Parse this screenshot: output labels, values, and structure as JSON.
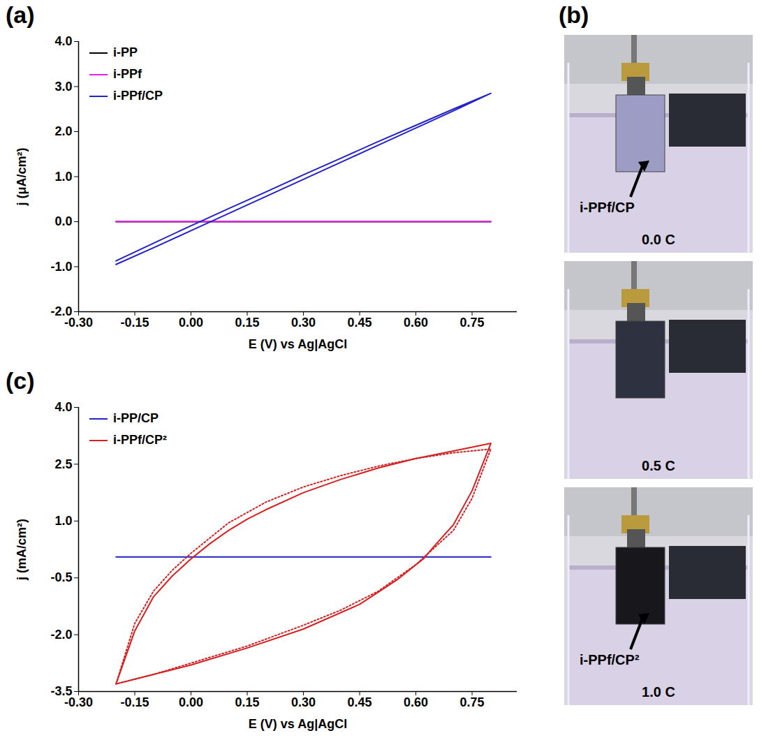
{
  "panel_labels": [
    "(a)",
    "(b)",
    "(c)"
  ],
  "chart_data": [
    {
      "type": "line",
      "x_label": "E (V) vs Ag|AgCl",
      "y_label": "j (μA/cm²)",
      "xlim": [
        -0.3,
        0.87
      ],
      "ylim": [
        -2.0,
        4.0
      ],
      "xticks": [
        {
          "value": -0.3,
          "label": "-0.30"
        },
        {
          "value": -0.15,
          "label": "-0.15"
        },
        {
          "value": 0,
          "label": "0.00"
        },
        {
          "value": 0.15,
          "label": "0.15"
        },
        {
          "value": 0.3,
          "label": "0.30"
        },
        {
          "value": 0.45,
          "label": "0.45"
        },
        {
          "value": 0.6,
          "label": "0.60"
        },
        {
          "value": 0.75,
          "label": "0.75"
        }
      ],
      "yticks": [
        {
          "value": -2,
          "label": "-2.0"
        },
        {
          "value": -1,
          "label": "-1.0"
        },
        {
          "value": 0,
          "label": "0.0"
        },
        {
          "value": 1,
          "label": "1.0"
        },
        {
          "value": 2,
          "label": "2.0"
        },
        {
          "value": 3,
          "label": "3.0"
        },
        {
          "value": 4,
          "label": "4.0"
        }
      ],
      "grid": false,
      "legend": "top-left",
      "series": [
        {
          "name": "i-PP",
          "color": "#000000",
          "line_style": "solid",
          "x": [
            -0.2,
            0.8
          ],
          "values": [
            0,
            0
          ]
        },
        {
          "name": "i-PPf",
          "color": "#e61ee6",
          "line_style": "solid",
          "x": [
            -0.2,
            0.8
          ],
          "values": [
            0,
            0
          ]
        },
        {
          "name": "i-PPf/CP",
          "color": "#2222c8",
          "line_style": "solid",
          "x": [
            -0.2,
            -0.1,
            0.0,
            0.1,
            0.2,
            0.3,
            0.4,
            0.5,
            0.6,
            0.7,
            0.8,
            0.7,
            0.6,
            0.5,
            0.4,
            0.3,
            0.2,
            0.1,
            0.0,
            -0.1,
            -0.2
          ],
          "values": [
            -0.95,
            -0.58,
            -0.2,
            0.18,
            0.56,
            0.94,
            1.32,
            1.7,
            2.08,
            2.46,
            2.85,
            2.5,
            2.14,
            1.78,
            1.41,
            1.04,
            0.66,
            0.29,
            -0.09,
            -0.48,
            -0.87
          ]
        }
      ]
    },
    {
      "type": "line",
      "x_label": "E (V) vs Ag|AgCl",
      "y_label": "j (mA/cm²)",
      "xlim": [
        -0.3,
        0.87
      ],
      "ylim": [
        -3.5,
        4.0
      ],
      "xticks": [
        {
          "value": -0.3,
          "label": "-0.30"
        },
        {
          "value": -0.15,
          "label": "-0.15"
        },
        {
          "value": 0,
          "label": "0.00"
        },
        {
          "value": 0.15,
          "label": "0.15"
        },
        {
          "value": 0.3,
          "label": "0.30"
        },
        {
          "value": 0.45,
          "label": "0.45"
        },
        {
          "value": 0.6,
          "label": "0.60"
        },
        {
          "value": 0.75,
          "label": "0.75"
        }
      ],
      "yticks": [
        {
          "value": -3.5,
          "label": "-3.5"
        },
        {
          "value": -2,
          "label": "-2.0"
        },
        {
          "value": -0.5,
          "label": "-0.5"
        },
        {
          "value": 1,
          "label": "1.0"
        },
        {
          "value": 2.5,
          "label": "2.5"
        },
        {
          "value": 4,
          "label": "4.0"
        }
      ],
      "grid": false,
      "legend": "top-left",
      "series": [
        {
          "name": "i-PP/CP",
          "color": "#2222c8",
          "line_style": "solid",
          "x": [
            -0.2,
            0.8
          ],
          "values": [
            0.05,
            0.05
          ]
        },
        {
          "name": "i-PPf/CP²",
          "color": "#d42020",
          "line_style": "solid",
          "x": [
            -0.2,
            -0.15,
            -0.1,
            -0.05,
            0.0,
            0.05,
            0.1,
            0.15,
            0.2,
            0.3,
            0.4,
            0.5,
            0.6,
            0.7,
            0.8,
            0.75,
            0.7,
            0.65,
            0.62,
            0.55,
            0.45,
            0.3,
            0.15,
            0.0,
            -0.1,
            -0.2
          ],
          "values": [
            -3.3,
            -1.9,
            -1.0,
            -0.45,
            0.0,
            0.4,
            0.75,
            1.05,
            1.3,
            1.75,
            2.1,
            2.4,
            2.65,
            2.85,
            3.05,
            1.8,
            0.9,
            0.35,
            0.0,
            -0.55,
            -1.2,
            -1.85,
            -2.35,
            -2.8,
            -3.05,
            -3.3
          ]
        },
        {
          "name": "i-PPf/CP²",
          "color": "#d42020",
          "line_style": "dotted",
          "x": [
            -0.2,
            -0.15,
            -0.1,
            -0.05,
            0.0,
            0.1,
            0.2,
            0.3,
            0.4,
            0.5,
            0.6,
            0.7,
            0.8,
            0.75,
            0.7,
            0.6,
            0.5,
            0.4,
            0.3,
            0.15,
            0.0,
            -0.1,
            -0.2
          ],
          "values": [
            -3.3,
            -1.7,
            -0.85,
            -0.3,
            0.15,
            0.95,
            1.5,
            1.9,
            2.2,
            2.45,
            2.65,
            2.8,
            2.9,
            1.6,
            0.75,
            -0.15,
            -0.85,
            -1.35,
            -1.75,
            -2.3,
            -2.75,
            -3.05,
            -3.3
          ]
        }
      ]
    }
  ],
  "photos": [
    {
      "caption": "0.0 C",
      "label": "i-PPf/CP"
    },
    {
      "caption": "0.5 C"
    },
    {
      "caption": "1.0 C",
      "label": "i-PPf/CP²"
    }
  ]
}
